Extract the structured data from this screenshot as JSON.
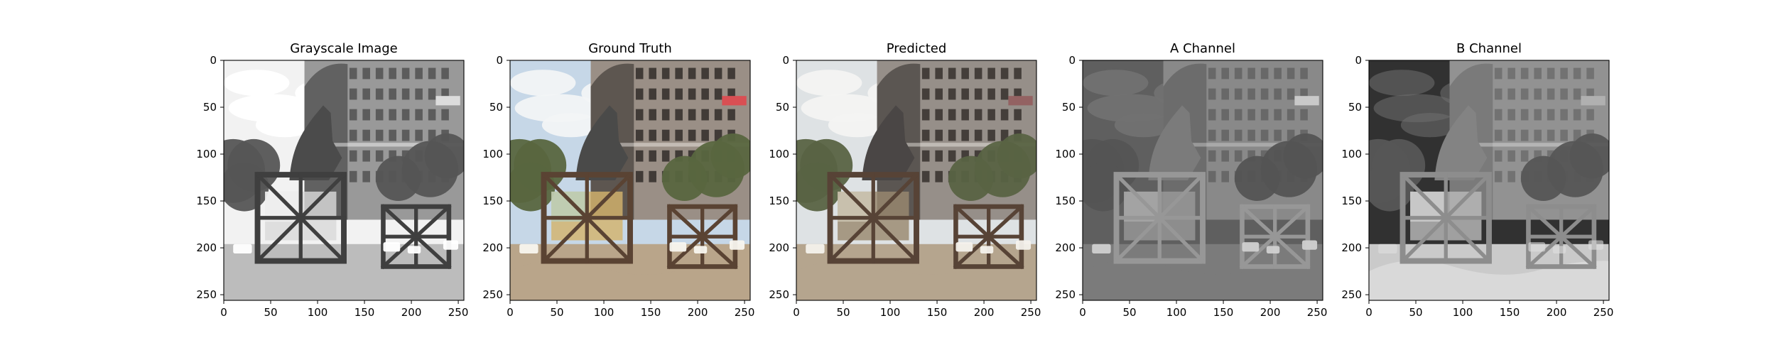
{
  "figure": {
    "panels": [
      {
        "id": "grayscale",
        "title": "Grayscale Image",
        "mode": "gray",
        "x_ticks": [
          "0",
          "50",
          "100",
          "150",
          "200",
          "250"
        ],
        "y_ticks": [
          "0",
          "50",
          "100",
          "150",
          "200",
          "250"
        ]
      },
      {
        "id": "ground-truth",
        "title": "Ground Truth",
        "mode": "color",
        "x_ticks": [
          "0",
          "50",
          "100",
          "150",
          "200",
          "250"
        ],
        "y_ticks": [
          "0",
          "50",
          "100",
          "150",
          "200",
          "250"
        ]
      },
      {
        "id": "predicted",
        "title": "Predicted",
        "mode": "color-muted",
        "x_ticks": [
          "0",
          "50",
          "100",
          "150",
          "200",
          "250"
        ],
        "y_ticks": [
          "0",
          "50",
          "100",
          "150",
          "200",
          "250"
        ]
      },
      {
        "id": "a-channel",
        "title": "A Channel",
        "mode": "a-channel",
        "x_ticks": [
          "0",
          "50",
          "100",
          "150",
          "200",
          "250"
        ],
        "y_ticks": [
          "0",
          "50",
          "100",
          "150",
          "200",
          "250"
        ]
      },
      {
        "id": "b-channel",
        "title": "B Channel",
        "mode": "b-channel",
        "x_ticks": [
          "0",
          "50",
          "100",
          "150",
          "200",
          "250"
        ],
        "y_ticks": [
          "0",
          "50",
          "100",
          "150",
          "200",
          "250"
        ]
      }
    ],
    "image_domain": [
      0,
      256
    ],
    "scene_colors": {
      "sky": "#c6d7e7",
      "cloud": "#f2f4f6",
      "building": "#9a8f86",
      "building_dark": "#5d5650",
      "tree": "#59663f",
      "ground": "#b9a58a",
      "scaffold": "#5a4333",
      "tarp": "#d3b36c",
      "tarp_light": "#b8d2c3",
      "statue": "#4a4a49",
      "sign": "#d94f53"
    }
  }
}
